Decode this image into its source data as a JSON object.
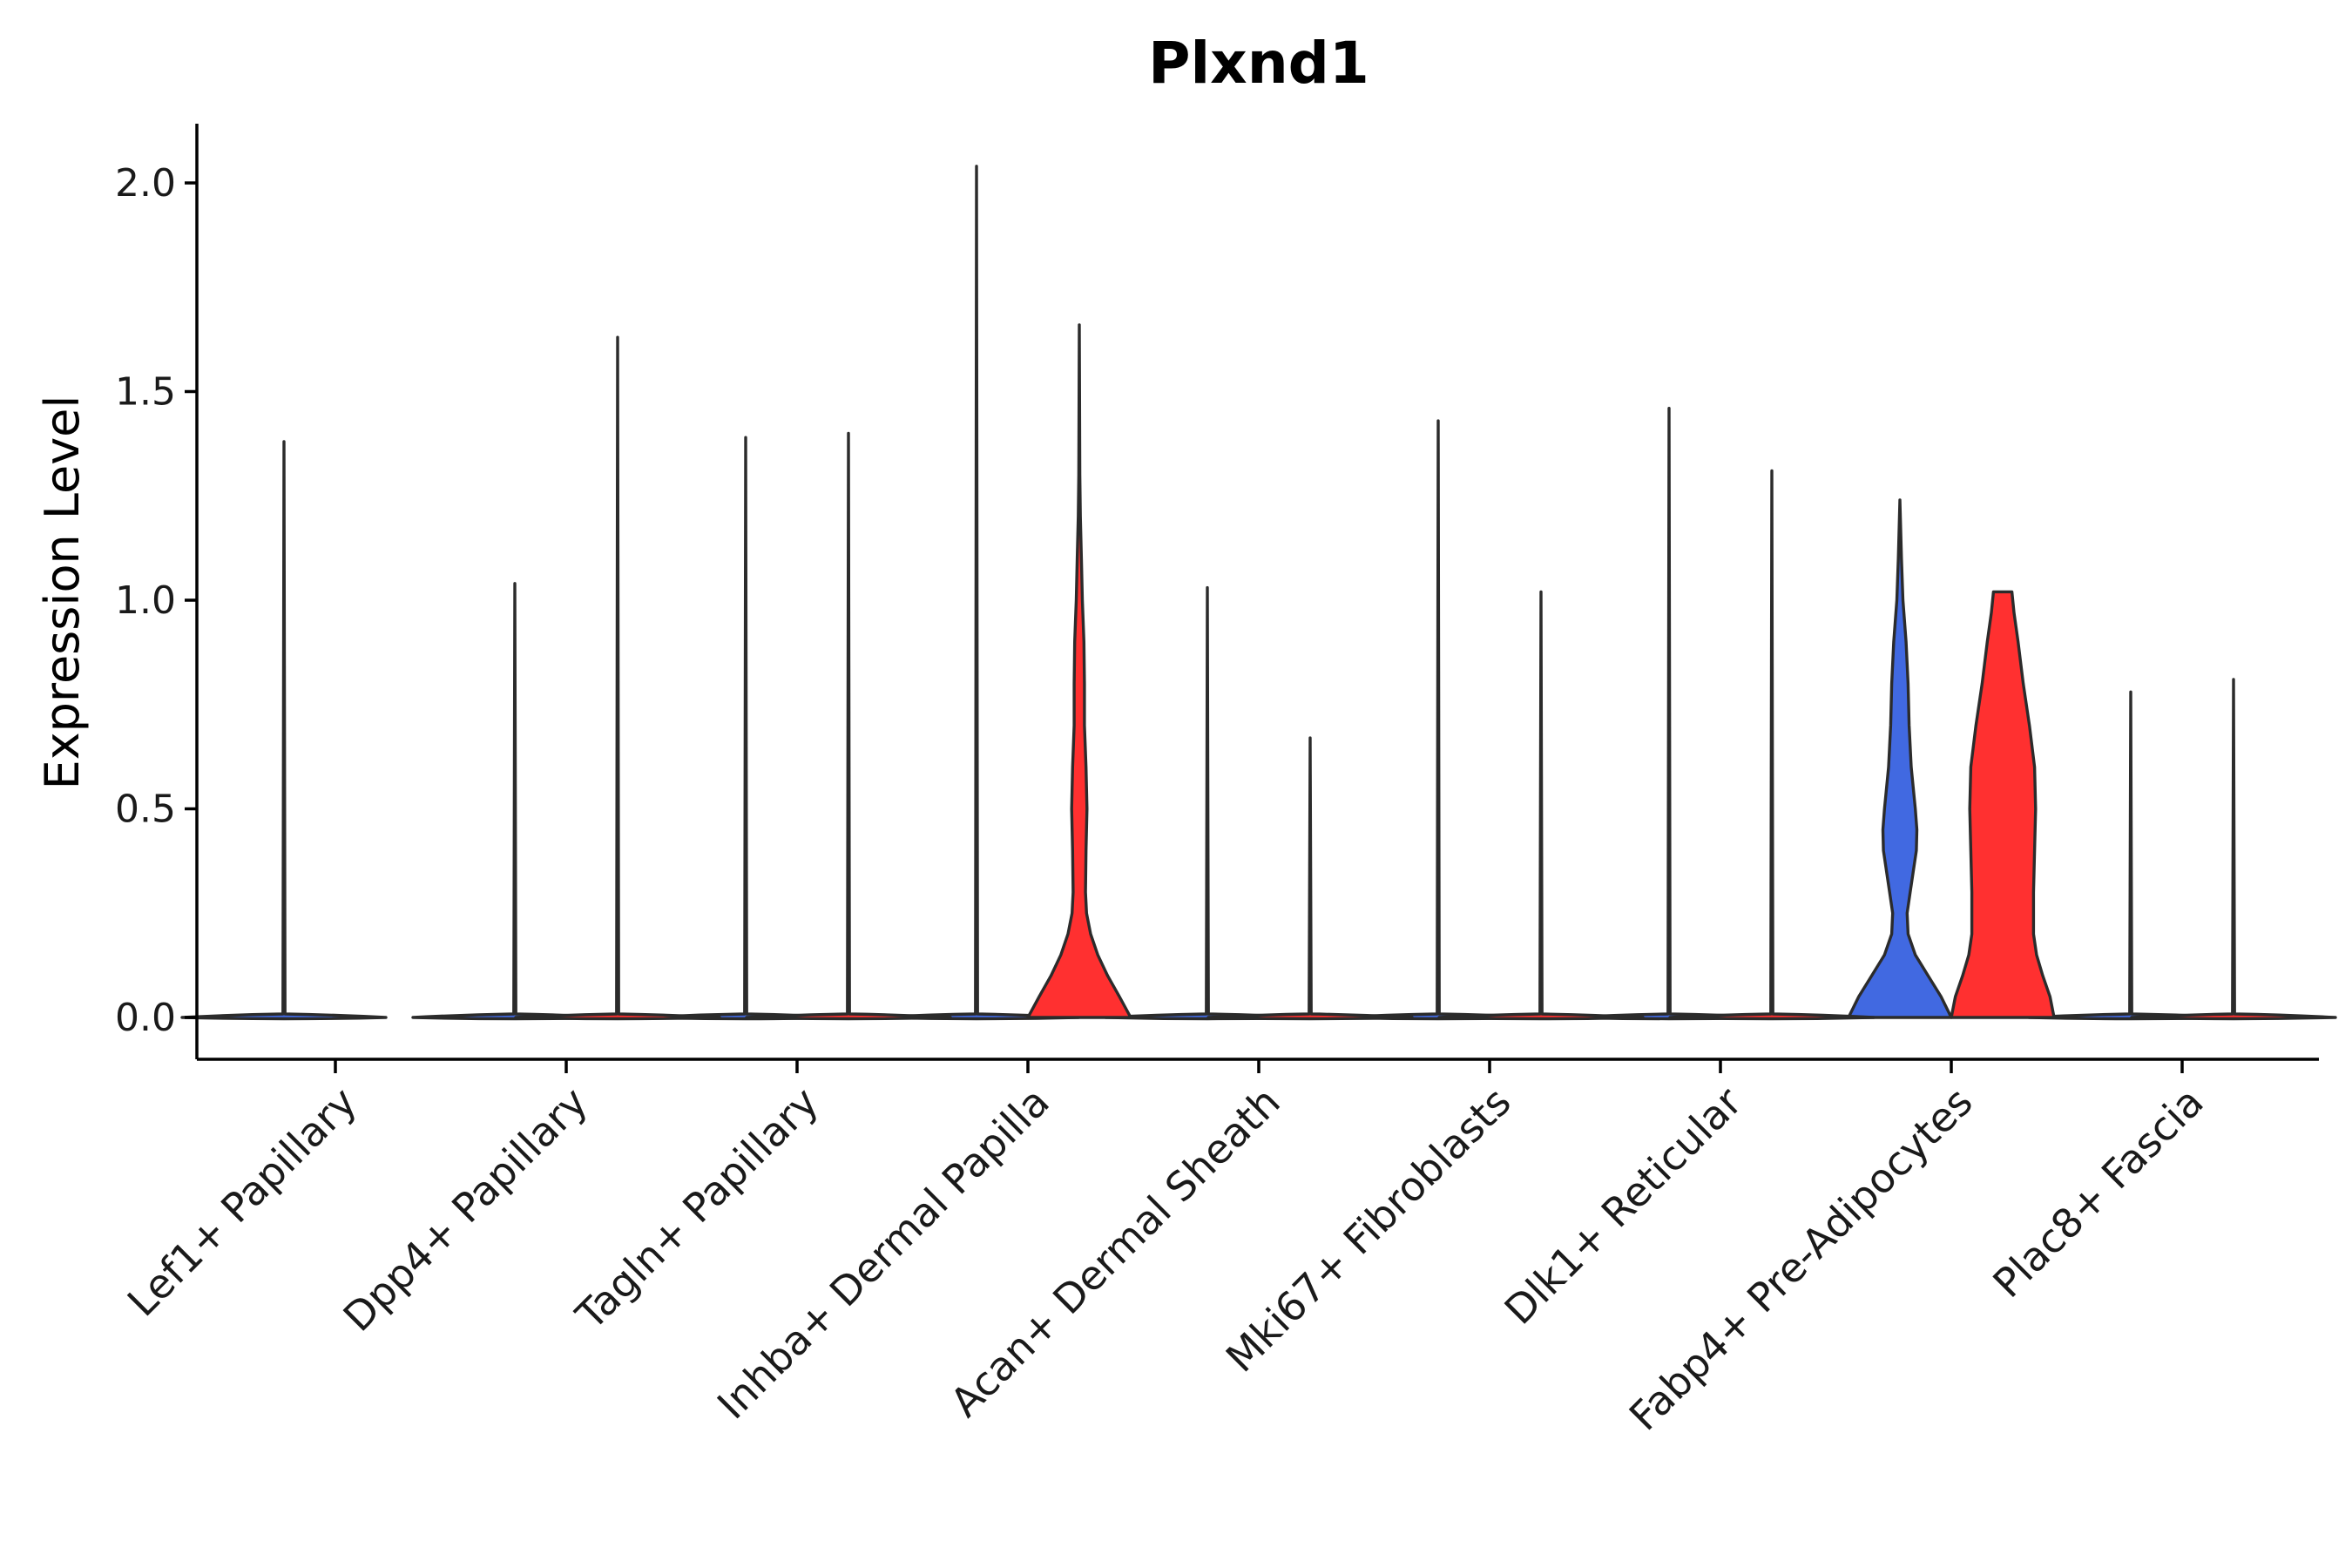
{
  "chart_data": {
    "type": "violin",
    "title": "Plxnd1",
    "xlabel": "",
    "ylabel": "Expression Level",
    "ylim": [
      -0.1,
      2.15
    ],
    "yticks": [
      "0.0",
      "0.5",
      "1.0",
      "1.5",
      "2.0"
    ],
    "grid": false,
    "legend": "none",
    "categories": [
      "Lef1+ Papillary",
      "Dpp4+ Papillary",
      "Tagln+ Papillary",
      "Inhba+ Dermal Papilla",
      "Acan+ Dermal Sheath",
      "Mki67+ Fibroblasts",
      "Dlk1+ Reticular",
      "Fabp4+ Pre-Adipocytes",
      "Plac8+ Fascia"
    ],
    "colors": {
      "group1": "#4169E1",
      "group2": "#FF3030"
    },
    "series": [
      {
        "name": "group1",
        "color": "#4169E1",
        "max_values": [
          1.38,
          1.04,
          1.39,
          2.04,
          1.03,
          1.43,
          1.46,
          1.24,
          0.78
        ],
        "profiles": [
          null,
          null,
          null,
          null,
          null,
          null,
          null,
          [
            [
              0.0,
              1.0
            ],
            [
              0.05,
              0.8
            ],
            [
              0.1,
              0.55
            ],
            [
              0.15,
              0.3
            ],
            [
              0.2,
              0.16
            ],
            [
              0.25,
              0.14
            ],
            [
              0.3,
              0.2
            ],
            [
              0.4,
              0.32
            ],
            [
              0.45,
              0.33
            ],
            [
              0.5,
              0.3
            ],
            [
              0.6,
              0.22
            ],
            [
              0.7,
              0.18
            ],
            [
              0.8,
              0.16
            ],
            [
              0.9,
              0.12
            ],
            [
              1.0,
              0.06
            ],
            [
              1.1,
              0.03
            ],
            [
              1.24,
              0.0
            ]
          ],
          null
        ]
      },
      {
        "name": "group2",
        "color": "#FF3030",
        "max_values": [
          null,
          1.63,
          1.4,
          1.66,
          0.67,
          1.02,
          1.31,
          1.02,
          0.81
        ],
        "profiles": [
          null,
          null,
          null,
          [
            [
              0.0,
              1.0
            ],
            [
              0.05,
              0.78
            ],
            [
              0.1,
              0.55
            ],
            [
              0.15,
              0.36
            ],
            [
              0.2,
              0.22
            ],
            [
              0.25,
              0.14
            ],
            [
              0.3,
              0.12
            ],
            [
              0.4,
              0.13
            ],
            [
              0.5,
              0.15
            ],
            [
              0.6,
              0.13
            ],
            [
              0.7,
              0.1
            ],
            [
              0.8,
              0.1
            ],
            [
              0.9,
              0.09
            ],
            [
              1.0,
              0.06
            ],
            [
              1.1,
              0.04
            ],
            [
              1.2,
              0.02
            ],
            [
              1.3,
              0.01
            ],
            [
              1.66,
              0.0
            ]
          ],
          null,
          null,
          null,
          [
            [
              0.0,
              1.0
            ],
            [
              0.05,
              0.92
            ],
            [
              0.1,
              0.78
            ],
            [
              0.15,
              0.66
            ],
            [
              0.2,
              0.6
            ],
            [
              0.3,
              0.6
            ],
            [
              0.4,
              0.62
            ],
            [
              0.5,
              0.64
            ],
            [
              0.6,
              0.62
            ],
            [
              0.7,
              0.52
            ],
            [
              0.8,
              0.4
            ],
            [
              0.9,
              0.3
            ],
            [
              0.97,
              0.22
            ],
            [
              1.02,
              0.18
            ]
          ],
          null
        ]
      }
    ]
  }
}
